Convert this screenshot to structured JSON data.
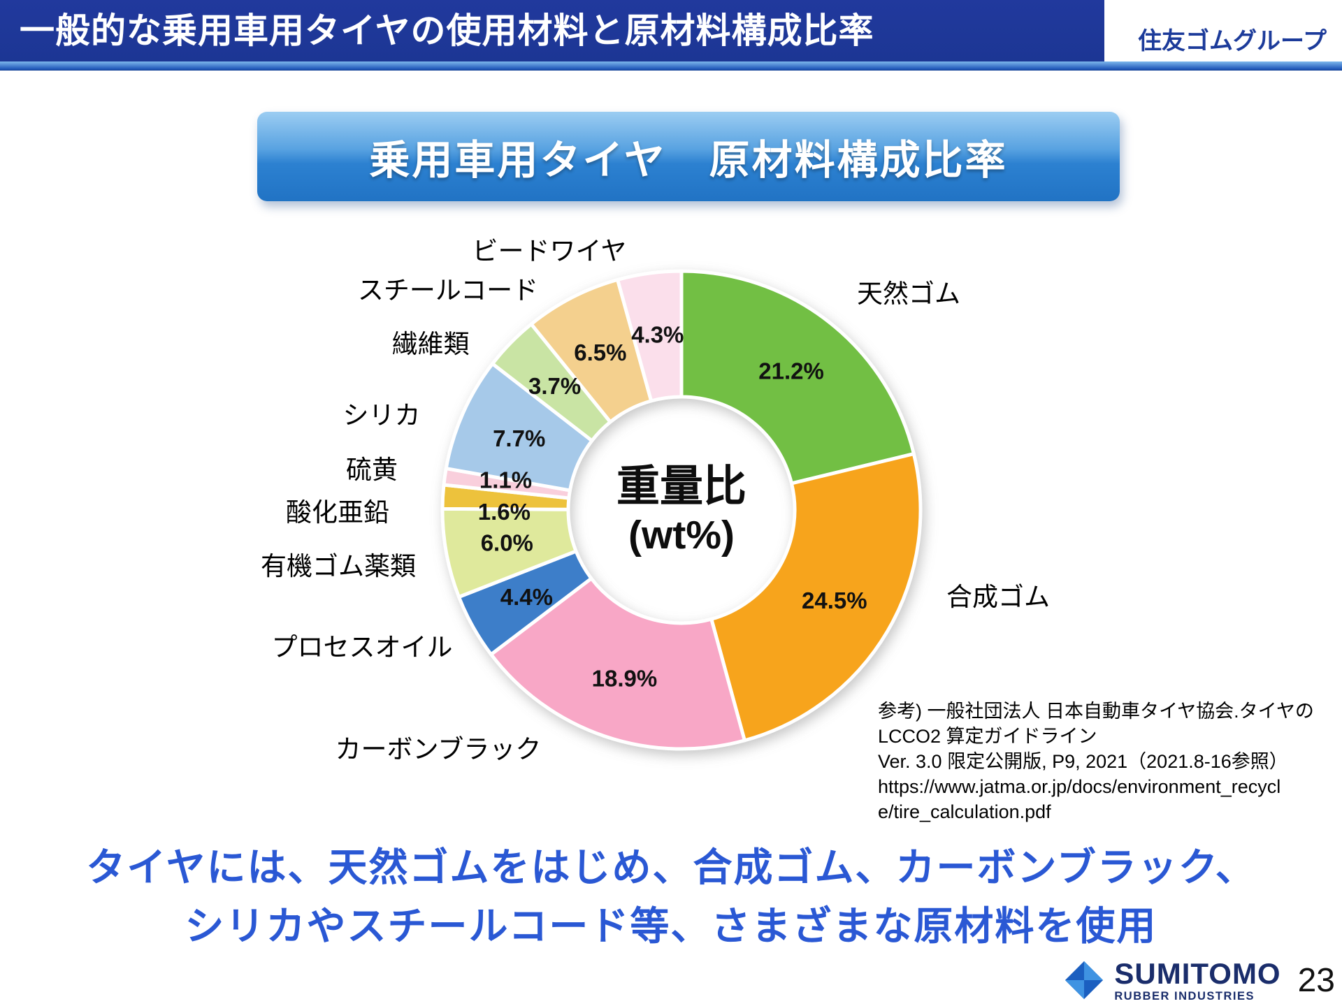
{
  "header": {
    "title": "一般的な乗用車用タイヤの使用材料と原材料構成比率",
    "brand": "住友ゴムグループ"
  },
  "heading_box": {
    "text": "乗用車用タイヤ　原材料構成比率"
  },
  "chart_data": {
    "type": "pie",
    "subtype": "donut",
    "title": "乗用車用タイヤ　原材料構成比率",
    "unit": "wt%",
    "center_label": [
      "重量比",
      "(wt%)"
    ],
    "start_angle_deg": 0,
    "direction": "clockwise",
    "slices": [
      {
        "label": "天然ゴム",
        "key": "natural-rubber",
        "value": 21.2,
        "color": "#72bf44"
      },
      {
        "label": "合成ゴム",
        "key": "synthetic-rubber",
        "value": 24.5,
        "color": "#f7a41c"
      },
      {
        "label": "カーボンブラック",
        "key": "carbon-black",
        "value": 18.9,
        "color": "#f8a7c6"
      },
      {
        "label": "プロセスオイル",
        "key": "process-oil",
        "value": 4.4,
        "color": "#3d7ec9"
      },
      {
        "label": "有機ゴム薬類",
        "key": "organic-rubber-chemicals",
        "value": 6.0,
        "color": "#dfe99c"
      },
      {
        "label": "酸化亜鉛",
        "key": "zinc-oxide",
        "value": 1.6,
        "color": "#edc23c"
      },
      {
        "label": "硫黄",
        "key": "sulfur",
        "value": 1.1,
        "color": "#f9cfdc"
      },
      {
        "label": "シリカ",
        "key": "silica",
        "value": 7.7,
        "color": "#a6c9e9"
      },
      {
        "label": "繊維類",
        "key": "fibers",
        "value": 3.7,
        "color": "#c9e4a4"
      },
      {
        "label": "スチールコード",
        "key": "steel-cord",
        "value": 6.5,
        "color": "#f4d08e"
      },
      {
        "label": "ビードワイヤ",
        "key": "bead-wire",
        "value": 4.3,
        "color": "#fbdfeb"
      }
    ]
  },
  "reference": {
    "lines": [
      "参考) 一般社団法人 日本自動車タイヤ協会.タイヤの",
      "LCCO2 算定ガイドライン",
      "Ver. 3.0 限定公開版, P9, 2021（2021.8-16参照）",
      "https://www.jatma.or.jp/docs/environment_recycl",
      "e/tire_calculation.pdf"
    ]
  },
  "message": {
    "line1": "タイヤには、天然ゴムをはじめ、合成ゴム、カーボンブラック、",
    "line2": "シリカやスチールコード等、さまざまな原材料を使用"
  },
  "theme": {
    "header_bg": "#1c3694",
    "accent_blue": "#1e55b8",
    "message_text": "#2a58d4",
    "brand_text": "#1c3b9a"
  },
  "footer": {
    "company": "SUMITOMO",
    "company_sub": "RUBBER INDUSTRIES",
    "page_number": "23"
  }
}
